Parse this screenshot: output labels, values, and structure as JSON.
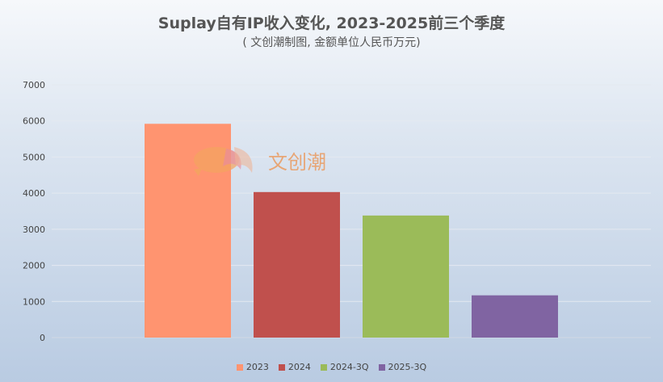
{
  "title": "Suplay自有IP收入变化, 2023-2025前三个季度",
  "subtitle": "( 文创潮制图, 金额单位人民币万元)",
  "watermark": "文创潮",
  "chart_data": {
    "type": "bar",
    "categories": [
      "2023",
      "2024",
      "2024-3Q",
      "2025-3Q"
    ],
    "values": [
      5920,
      4030,
      3380,
      1170
    ],
    "colors": [
      "#ff9470",
      "#c0504d",
      "#9bbb59",
      "#8064a2"
    ],
    "ylim": [
      0,
      7000
    ],
    "yticks": [
      0,
      1000,
      2000,
      3000,
      4000,
      5000,
      6000,
      7000
    ],
    "grid": true,
    "legend": "bottom"
  }
}
